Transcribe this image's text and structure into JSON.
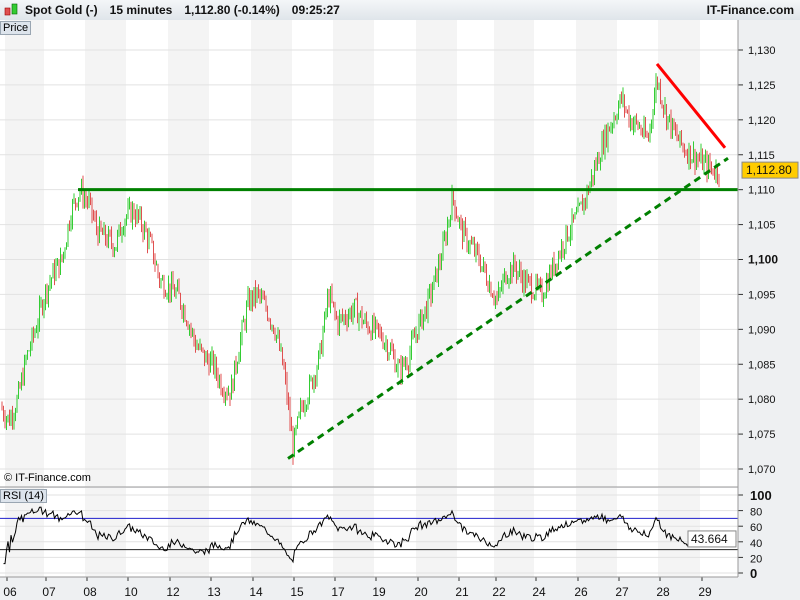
{
  "header": {
    "instrument": "Spot Gold (-)",
    "timeframe": "15 minutes",
    "last": "1,112.80 (-0.14%)",
    "time": "09:25:27",
    "brand": "IT-Finance.com"
  },
  "panels": {
    "price_label": "Price",
    "rsi_label": "RSI (14)",
    "copyright": "© IT-Finance.com"
  },
  "colors": {
    "up": "#33cc33",
    "down": "#e05050",
    "support": "#008000",
    "resistance": "#ff0000",
    "rsi_band": "#2020cc",
    "last_tag": "#ffcc00"
  },
  "chart_data": {
    "type": "candlestick",
    "timeframe": "15 minutes",
    "x_ticks": [
      "06",
      "07",
      "08",
      "10",
      "12",
      "13",
      "14",
      "15",
      "17",
      "19",
      "20",
      "21",
      "22",
      "24",
      "26",
      "27",
      "28",
      "29"
    ],
    "y_ticks": [
      "1,070",
      "1,075",
      "1,080",
      "1,085",
      "1,090",
      "1,095",
      "1,100",
      "1,105",
      "1,110",
      "1,115",
      "1,120",
      "1,125",
      "1,130"
    ],
    "ylim": [
      1068,
      1133
    ],
    "last_price": "1,112.80",
    "approx_close_path": [
      1079,
      1077,
      1080,
      1086,
      1090,
      1095,
      1098,
      1100,
      1107,
      1110,
      1108,
      1104,
      1103,
      1102,
      1106,
      1107,
      1105,
      1102,
      1097,
      1096,
      1095,
      1092,
      1088,
      1086,
      1085,
      1082,
      1081,
      1088,
      1094,
      1095,
      1093,
      1090,
      1084,
      1073,
      1079,
      1082,
      1086,
      1095,
      1091,
      1092,
      1093,
      1091,
      1090,
      1089,
      1087,
      1084,
      1086,
      1090,
      1093,
      1097,
      1102,
      1109,
      1104,
      1102,
      1100,
      1097,
      1094,
      1098,
      1099,
      1097,
      1096,
      1095,
      1098,
      1101,
      1104,
      1106,
      1109,
      1113,
      1117,
      1120,
      1123,
      1120,
      1119,
      1117,
      1126,
      1121,
      1118,
      1116,
      1115,
      1114,
      1113,
      1112.8
    ],
    "lines": [
      {
        "kind": "horizontal support",
        "price": 1110
      },
      {
        "kind": "rising dashed trendline",
        "from": 1071.5,
        "to": 1114.5
      },
      {
        "kind": "falling resistance",
        "from": 1128,
        "to": 1116
      }
    ],
    "rsi": {
      "period": 14,
      "ylim": [
        0,
        100
      ],
      "y_ticks": [
        "0",
        "20",
        "40",
        "60",
        "80",
        "100"
      ],
      "bands": [
        30,
        70
      ],
      "last": "43.664"
    }
  }
}
